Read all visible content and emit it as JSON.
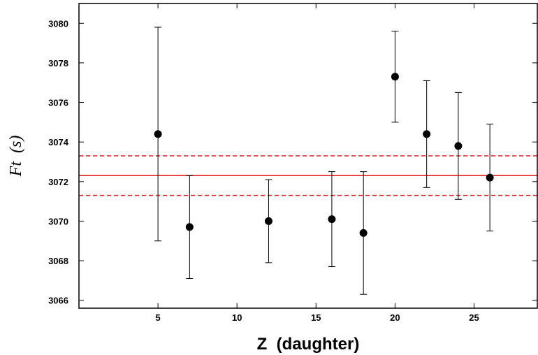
{
  "chart_data": {
    "type": "scatter",
    "title": "",
    "xlabel": "Z  (daughter)",
    "ylabel": "Ft  (s)",
    "xlim": [
      0,
      29
    ],
    "ylim": [
      3065.6,
      3081.0
    ],
    "xticks": [
      5,
      10,
      15,
      20,
      25
    ],
    "yticks": [
      3066,
      3068,
      3070,
      3072,
      3074,
      3076,
      3078,
      3080
    ],
    "grid": false,
    "series": [
      {
        "points": [
          {
            "x": 5,
            "y": 3074.4,
            "ylow": 3069.0,
            "yhigh": 3079.8
          },
          {
            "x": 7,
            "y": 3069.7,
            "ylow": 3067.1,
            "yhigh": 3072.3
          },
          {
            "x": 12,
            "y": 3070.0,
            "ylow": 3067.9,
            "yhigh": 3072.1
          },
          {
            "x": 16,
            "y": 3070.1,
            "ylow": 3067.7,
            "yhigh": 3072.5
          },
          {
            "x": 18,
            "y": 3069.4,
            "ylow": 3066.3,
            "yhigh": 3072.5
          },
          {
            "x": 20,
            "y": 3077.3,
            "ylow": 3075.0,
            "yhigh": 3079.6
          },
          {
            "x": 22,
            "y": 3074.4,
            "ylow": 3071.7,
            "yhigh": 3077.1
          },
          {
            "x": 24,
            "y": 3073.8,
            "ylow": 3071.1,
            "yhigh": 3076.5
          },
          {
            "x": 26,
            "y": 3072.2,
            "ylow": 3069.5,
            "yhigh": 3074.9
          }
        ],
        "color": "#000000"
      }
    ],
    "reference_lines": [
      {
        "y": 3072.3,
        "style": "solid",
        "color": "#e41a1c"
      },
      {
        "y": 3073.3,
        "style": "dashed",
        "color": "#e41a1c"
      },
      {
        "y": 3071.3,
        "style": "dashed",
        "color": "#e41a1c"
      }
    ]
  }
}
